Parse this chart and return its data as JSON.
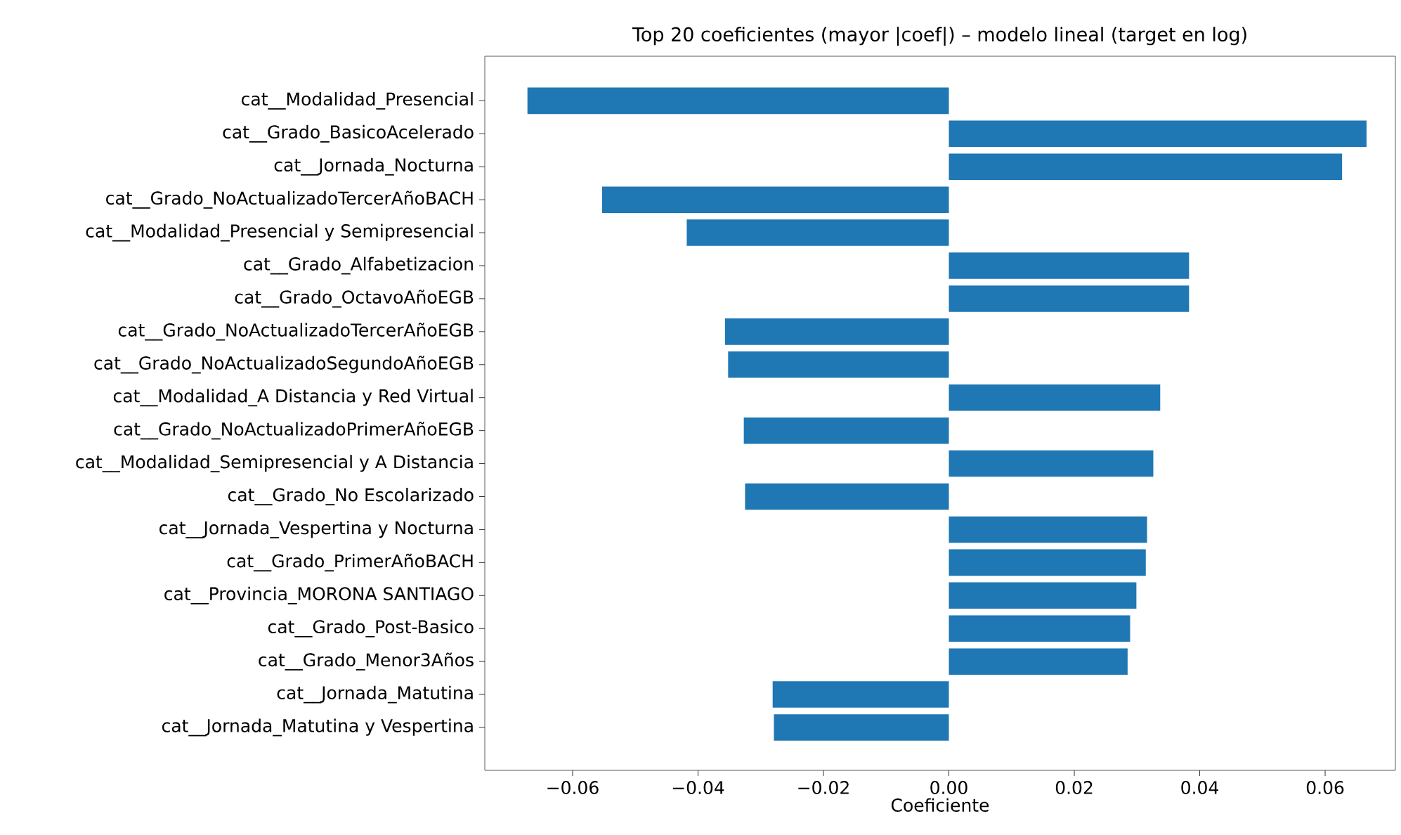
{
  "chart_data": {
    "type": "bar",
    "orientation": "horizontal",
    "title": "Top 20 coeficientes (mayor |coef|) – modelo lineal (target en log)",
    "xlabel": "Coeficiente",
    "categories": [
      "cat__Modalidad_Presencial",
      "cat__Grado_BasicoAcelerado",
      "cat__Jornada_Nocturna",
      "cat__Grado_NoActualizadoTercerAñoBACH",
      "cat__Modalidad_Presencial y Semipresencial",
      "cat__Grado_Alfabetizacion",
      "cat__Grado_OctavoAñoEGB",
      "cat__Grado_NoActualizadoTercerAñoEGB",
      "cat__Grado_NoActualizadoSegundoAñoEGB",
      "cat__Modalidad_A Distancia y Red Virtual",
      "cat__Grado_NoActualizadoPrimerAñoEGB",
      "cat__Modalidad_Semipresencial y A Distancia",
      "cat__Grado_No Escolarizado",
      "cat__Jornada_Vespertina y Nocturna",
      "cat__Grado_PrimerAñoBACH",
      "cat__Provincia_MORONA SANTIAGO",
      "cat__Grado_Post-Basico",
      "cat__Grado_Menor3Años",
      "cat__Jornada_Matutina",
      "cat__Jornada_Matutina y Vespertina"
    ],
    "values": [
      -0.0672,
      0.0666,
      0.0627,
      -0.0553,
      -0.0418,
      0.0383,
      0.0383,
      -0.0357,
      -0.0352,
      0.0337,
      -0.0327,
      0.0326,
      -0.0325,
      0.0316,
      0.0314,
      0.0299,
      0.0289,
      0.0285,
      -0.0281,
      -0.0279
    ],
    "color": "#1f77b4",
    "xlim": [
      -0.074,
      0.0712
    ],
    "xticks": [
      {
        "value": -0.06,
        "label": "−0.06"
      },
      {
        "value": -0.04,
        "label": "−0.04"
      },
      {
        "value": -0.02,
        "label": "−0.02"
      },
      {
        "value": 0,
        "label": "0.00"
      },
      {
        "value": 0.02,
        "label": "0.02"
      },
      {
        "value": 0.04,
        "label": "0.04"
      },
      {
        "value": 0.06,
        "label": "0.06"
      }
    ]
  }
}
